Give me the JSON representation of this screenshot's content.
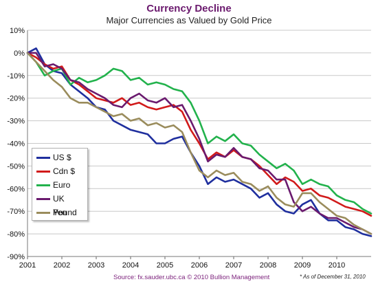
{
  "title": "Currency Decline",
  "subtitle": "Major Currencies as Valued by Gold Price",
  "source": "Source: fx.sauder.ubc.ca © 2010 Bullion Management",
  "as_of": "* As of December 31, 2010",
  "chart_data": {
    "type": "line",
    "title": "Currency Decline",
    "subtitle": "Major Currencies as Valued by Gold Price",
    "xlabel": "",
    "ylabel": "",
    "xlim": [
      2001,
      2011
    ],
    "ylim": [
      -90,
      10
    ],
    "x_ticks": [
      "2001",
      "2002",
      "2003",
      "2004",
      "2005",
      "2006",
      "2007",
      "2008",
      "2009",
      "2010"
    ],
    "y_ticks": [
      "10%",
      "0%",
      "-10%",
      "-20%",
      "-30%",
      "-40%",
      "-50%",
      "-60%",
      "-70%",
      "-80%",
      "-90%"
    ],
    "grid": true,
    "legend_position": "bottom-left",
    "series": [
      {
        "name": "US $",
        "color": "#1f2f9e",
        "x": [
          2001,
          2001.25,
          2001.5,
          2001.75,
          2002,
          2002.25,
          2002.5,
          2002.75,
          2003,
          2003.25,
          2003.5,
          2003.75,
          2004,
          2004.25,
          2004.5,
          2004.75,
          2005,
          2005.25,
          2005.5,
          2005.75,
          2006,
          2006.25,
          2006.5,
          2006.75,
          2007,
          2007.25,
          2007.5,
          2007.75,
          2008,
          2008.25,
          2008.5,
          2008.75,
          2009,
          2009.25,
          2009.5,
          2009.75,
          2010,
          2010.25,
          2010.5,
          2010.75,
          2011
        ],
        "values": [
          0,
          2,
          -5,
          -8,
          -9,
          -14,
          -17,
          -20,
          -24,
          -25,
          -30,
          -32,
          -34,
          -35,
          -36,
          -40,
          -40,
          -38,
          -37,
          -44,
          -50,
          -58,
          -55,
          -57,
          -56,
          -58,
          -60,
          -64,
          -62,
          -67,
          -70,
          -71,
          -67,
          -65,
          -71,
          -74,
          -74,
          -77,
          -78,
          -80,
          -81
        ]
      },
      {
        "name": "Cdn $",
        "color": "#d11a1a",
        "x": [
          2001,
          2001.25,
          2001.5,
          2001.75,
          2002,
          2002.25,
          2002.5,
          2002.75,
          2003,
          2003.25,
          2003.5,
          2003.75,
          2004,
          2004.25,
          2004.5,
          2004.75,
          2005,
          2005.25,
          2005.5,
          2005.75,
          2006,
          2006.25,
          2006.5,
          2006.75,
          2007,
          2007.25,
          2007.5,
          2007.75,
          2008,
          2008.25,
          2008.5,
          2008.75,
          2009,
          2009.25,
          2009.5,
          2009.75,
          2010,
          2010.25,
          2010.5,
          2010.75,
          2011
        ],
        "values": [
          0,
          -2,
          -5,
          -7,
          -6,
          -12,
          -14,
          -17,
          -20,
          -21,
          -22,
          -20,
          -23,
          -22,
          -24,
          -25,
          -24,
          -23,
          -26,
          -34,
          -40,
          -47,
          -44,
          -46,
          -43,
          -46,
          -47,
          -50,
          -54,
          -58,
          -55,
          -57,
          -61,
          -60,
          -63,
          -64,
          -66,
          -68,
          -69,
          -70,
          -72
        ]
      },
      {
        "name": "Euro",
        "color": "#22b24c",
        "x": [
          2001,
          2001.25,
          2001.5,
          2001.75,
          2002,
          2002.25,
          2002.5,
          2002.75,
          2003,
          2003.25,
          2003.5,
          2003.75,
          2004,
          2004.25,
          2004.5,
          2004.75,
          2005,
          2005.25,
          2005.5,
          2005.75,
          2006,
          2006.25,
          2006.5,
          2006.75,
          2007,
          2007.25,
          2007.5,
          2007.75,
          2008,
          2008.25,
          2008.5,
          2008.75,
          2009,
          2009.25,
          2009.5,
          2009.75,
          2010,
          2010.25,
          2010.5,
          2010.75,
          2011
        ],
        "values": [
          0,
          -4,
          -10,
          -8,
          -7,
          -14,
          -11,
          -13,
          -12,
          -10,
          -7,
          -8,
          -12,
          -11,
          -14,
          -13,
          -14,
          -16,
          -17,
          -22,
          -30,
          -40,
          -37,
          -39,
          -36,
          -40,
          -41,
          -45,
          -48,
          -51,
          -49,
          -52,
          -58,
          -56,
          -58,
          -59,
          -63,
          -65,
          -66,
          -69,
          -71
        ]
      },
      {
        "name": "UK Pound",
        "color": "#6a1a6e",
        "x": [
          2001,
          2001.25,
          2001.5,
          2001.75,
          2002,
          2002.25,
          2002.5,
          2002.75,
          2003,
          2003.25,
          2003.5,
          2003.75,
          2004,
          2004.25,
          2004.5,
          2004.75,
          2005,
          2005.25,
          2005.5,
          2005.75,
          2006,
          2006.25,
          2006.5,
          2006.75,
          2007,
          2007.25,
          2007.5,
          2007.75,
          2008,
          2008.25,
          2008.5,
          2008.75,
          2009,
          2009.25,
          2009.5,
          2009.75,
          2010,
          2010.25,
          2010.5,
          2010.75,
          2011
        ],
        "values": [
          0,
          0,
          -6,
          -5,
          -7,
          -12,
          -13,
          -16,
          -18,
          -20,
          -23,
          -24,
          -20,
          -18,
          -21,
          -22,
          -20,
          -24,
          -23,
          -30,
          -38,
          -48,
          -45,
          -46,
          -42,
          -46,
          -47,
          -51,
          -52,
          -56,
          -56,
          -66,
          -70,
          -68,
          -71,
          -73,
          -73,
          -75,
          -77,
          -78,
          -80
        ]
      },
      {
        "name": "Yen",
        "color": "#9a8c5c",
        "x": [
          2001,
          2001.25,
          2001.5,
          2001.75,
          2002,
          2002.25,
          2002.5,
          2002.75,
          2003,
          2003.25,
          2003.5,
          2003.75,
          2004,
          2004.25,
          2004.5,
          2004.75,
          2005,
          2005.25,
          2005.5,
          2005.75,
          2006,
          2006.25,
          2006.5,
          2006.75,
          2007,
          2007.25,
          2007.5,
          2007.75,
          2008,
          2008.25,
          2008.5,
          2008.75,
          2009,
          2009.25,
          2009.5,
          2009.75,
          2010,
          2010.25,
          2010.5,
          2010.75,
          2011
        ],
        "values": [
          0,
          -4,
          -8,
          -12,
          -15,
          -20,
          -22,
          -22,
          -24,
          -26,
          -28,
          -27,
          -30,
          -29,
          -32,
          -31,
          -33,
          -32,
          -35,
          -44,
          -52,
          -55,
          -52,
          -54,
          -53,
          -57,
          -58,
          -61,
          -59,
          -64,
          -67,
          -68,
          -62,
          -62,
          -66,
          -69,
          -72,
          -73,
          -76,
          -78,
          -80
        ]
      }
    ]
  }
}
